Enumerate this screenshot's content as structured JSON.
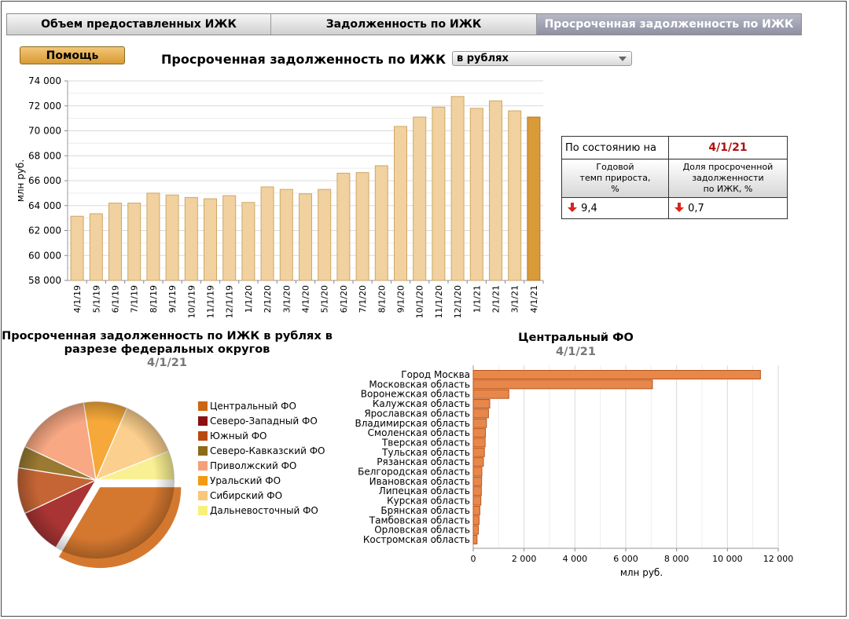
{
  "tabs": [
    {
      "label": "Объем предоставленных ИЖК",
      "active": false
    },
    {
      "label": "Задолженность по ИЖК",
      "active": false
    },
    {
      "label": "Просроченная задолженность по ИЖК",
      "active": true
    }
  ],
  "help_label": "Помощь",
  "main_chart_title": "Просроченная задолженность по ИЖК",
  "unit_select_value": "в рублях",
  "info": {
    "as_of_label": "По состоянию на",
    "as_of_date": "4/1/21",
    "col1_header": "Годовой темп прироста, %",
    "col1_lines": [
      "Годовой",
      "темп прироста,",
      "%"
    ],
    "col2_header": "Доля просроченной задолженности по ИЖК, %",
    "col2_lines": [
      "Доля просроченной",
      "задолженности",
      "по ИЖК, %"
    ],
    "col1_value": "9,4",
    "col2_value": "0,7",
    "down_color": "#d9261c"
  },
  "pie_title_line1": "Просроченная задолженность по ИЖК в рублях в",
  "pie_title_line2": "разрезе федеральных округов",
  "pie_date": "4/1/21",
  "bar_section_title": "Центральный ФО",
  "bar_section_date": "4/1/21",
  "chart_data": [
    {
      "type": "bar",
      "title": "Просроченная задолженность по ИЖК",
      "ylabel": "млн руб.",
      "ylim": [
        58000,
        74000
      ],
      "yticks": [
        58000,
        60000,
        62000,
        64000,
        66000,
        68000,
        70000,
        72000,
        74000
      ],
      "ytick_labels": [
        "58 000",
        "60 000",
        "62 000",
        "64 000",
        "66 000",
        "68 000",
        "70 000",
        "72 000",
        "74 000"
      ],
      "categories": [
        "4/1/19",
        "5/1/19",
        "6/1/19",
        "7/1/19",
        "8/1/19",
        "9/1/19",
        "10/1/19",
        "11/1/19",
        "12/1/19",
        "1/1/20",
        "2/1/20",
        "3/1/20",
        "4/1/20",
        "5/1/20",
        "6/1/20",
        "7/1/20",
        "8/1/20",
        "9/1/20",
        "10/1/20",
        "11/1/20",
        "12/1/20",
        "1/1/21",
        "2/1/21",
        "3/1/21",
        "4/1/21"
      ],
      "values": [
        63150,
        63350,
        64200,
        64200,
        65000,
        64850,
        64650,
        64550,
        64800,
        64250,
        65500,
        65300,
        64950,
        65300,
        66600,
        66650,
        67200,
        70350,
        71100,
        71900,
        72750,
        71800,
        72400,
        71600,
        71100
      ],
      "bar_color": "#f0d19f",
      "highlight_color": "#d99a38",
      "grid": true
    },
    {
      "type": "pie",
      "title": "Просроченная задолженность по ИЖК в рублях в разрезе федеральных округов",
      "labels": [
        "Центральный ФО",
        "Северо-Западный ФО",
        "Южный ФО",
        "Северо-Кавказский ФО",
        "Приволжский ФО",
        "Уральский ФО",
        "Сибирский ФО",
        "Дальневосточный ФО"
      ],
      "values": [
        33.5,
        9.5,
        9.5,
        4.5,
        15.5,
        9.0,
        12.5,
        6.0
      ],
      "colors": [
        "#d5782f",
        "#a93434",
        "#c56535",
        "#9a7a32",
        "#f8a883",
        "#f6a93a",
        "#fbcf8d",
        "#f9f093"
      ],
      "legend_colors": [
        "#cc6610",
        "#8b1010",
        "#b84a10",
        "#8c6a16",
        "#f5a07a",
        "#f29a10",
        "#f8c77a",
        "#f8f07a"
      ],
      "exploded": "Центральный ФО"
    },
    {
      "type": "bar",
      "orientation": "horizontal",
      "title": "Центральный ФО",
      "xlabel": "млн руб.",
      "xlim": [
        0,
        12000
      ],
      "xticks": [
        0,
        2000,
        4000,
        6000,
        8000,
        10000,
        12000
      ],
      "xtick_labels": [
        "0",
        "2 000",
        "4 000",
        "6 000",
        "8 000",
        "10 000",
        "12 000"
      ],
      "categories": [
        "Город Москва",
        "Московская область",
        "Воронежская область",
        "Калужская область",
        "Ярославская область",
        "Владимирская область",
        "Смоленская область",
        "Тверская область",
        "Тульская область",
        "Рязанская область",
        "Белгородская область",
        "Ивановская область",
        "Липецкая область",
        "Курская область",
        "Брянская область",
        "Тамбовская область",
        "Орловская область",
        "Костромская область"
      ],
      "values": [
        11300,
        7050,
        1400,
        650,
        600,
        520,
        480,
        470,
        440,
        400,
        340,
        330,
        320,
        300,
        260,
        230,
        200,
        150
      ],
      "bar_color": "#e8874a"
    }
  ]
}
